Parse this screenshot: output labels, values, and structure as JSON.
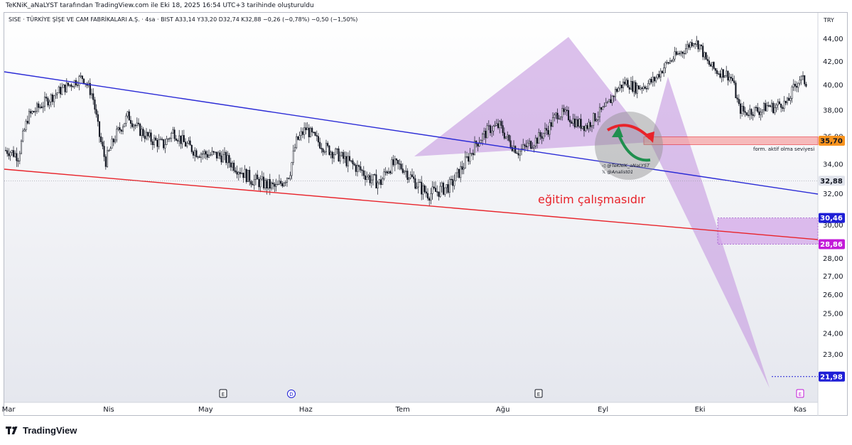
{
  "attribution": "TeKNiK_aNaLYST tarafından TradingView.com ile Eki 18, 2025 16:54 UTC+3 tarihinde oluşturuldu",
  "legend": {
    "symbol": "SISE · TÜRKİYE ŞİŞE VE CAM FABRİKALARI A.Ş. · 4sa · BIST",
    "open": "A33,14",
    "high": "Y33,20",
    "low": "D32,74",
    "close": "K32,88",
    "change": "−0,26 (−0,78%)",
    "change2": "−0,50 (−1,50%)"
  },
  "currency": "TRY",
  "brand": "TradingView",
  "colors": {
    "down_trend_line": "#2b2bd6",
    "lower_line": "#e8232a",
    "pattern_fill": "#c79be0",
    "zone_red": "#f6a5a5",
    "zone_purple": "#d1a3e8",
    "price_label_orange": "#f7931e",
    "price_label_blue": "#1f1fd6",
    "price_label_magenta": "#c21ad8",
    "price_label_grey": "#e0e3eb",
    "annotation_red": "#e8232a"
  },
  "chart_data": {
    "type": "candlestick",
    "y_scale": "log",
    "ylim": [
      21.5,
      45.5
    ],
    "y_ticks": [
      "44,00",
      "42,00",
      "40,00",
      "38,00",
      "36,00",
      "34,00",
      "32,00",
      "30,00",
      "28,00",
      "27,00",
      "26,00",
      "25,00",
      "24,00",
      "23,00",
      "22,00"
    ],
    "y_tick_values": [
      44,
      42,
      40,
      38,
      36,
      34,
      32,
      30,
      28,
      27,
      26,
      25,
      24,
      23,
      22
    ],
    "x_ticks": [
      "Mar",
      "Nis",
      "May",
      "Haz",
      "Tem",
      "Ağu",
      "Eyl",
      "Eki",
      "Kas"
    ],
    "x_tick_dates": [
      "2025-03-01",
      "2025-04-01",
      "2025-05-01",
      "2025-06-01",
      "2025-07-01",
      "2025-08-01",
      "2025-09-01",
      "2025-10-01",
      "2025-11-01"
    ],
    "x_range": [
      "2025-03-01",
      "2025-11-05"
    ],
    "price_path": [
      [
        "2025-03-01",
        35.0
      ],
      [
        "2025-03-04",
        34.6
      ],
      [
        "2025-03-07",
        37.5
      ],
      [
        "2025-03-12",
        38.6
      ],
      [
        "2025-03-17",
        39.6
      ],
      [
        "2025-03-22",
        40.4
      ],
      [
        "2025-03-24",
        40.7
      ],
      [
        "2025-03-27",
        39.2
      ],
      [
        "2025-03-29",
        36.2
      ],
      [
        "2025-03-31",
        34.2
      ],
      [
        "2025-04-03",
        36.0
      ],
      [
        "2025-04-07",
        37.6
      ],
      [
        "2025-04-10",
        36.6
      ],
      [
        "2025-04-14",
        35.8
      ],
      [
        "2025-04-18",
        35.4
      ],
      [
        "2025-04-21",
        36.4
      ],
      [
        "2025-04-24",
        35.6
      ],
      [
        "2025-04-28",
        34.9
      ],
      [
        "2025-05-02",
        34.7
      ],
      [
        "2025-05-06",
        34.6
      ],
      [
        "2025-05-10",
        33.9
      ],
      [
        "2025-05-15",
        33.0
      ],
      [
        "2025-05-20",
        32.6
      ],
      [
        "2025-05-23",
        32.4
      ],
      [
        "2025-05-27",
        33.4
      ],
      [
        "2025-05-29",
        35.6
      ],
      [
        "2025-06-01",
        36.6
      ],
      [
        "2025-06-04",
        35.8
      ],
      [
        "2025-06-07",
        35.2
      ],
      [
        "2025-06-10",
        34.8
      ],
      [
        "2025-06-14",
        34.2
      ],
      [
        "2025-06-18",
        33.6
      ],
      [
        "2025-06-21",
        33.0
      ],
      [
        "2025-06-24",
        32.7
      ],
      [
        "2025-06-26",
        33.6
      ],
      [
        "2025-06-28",
        34.0
      ],
      [
        "2025-07-01",
        33.8
      ],
      [
        "2025-07-04",
        33.0
      ],
      [
        "2025-07-07",
        32.3
      ],
      [
        "2025-07-09",
        32.0
      ],
      [
        "2025-07-12",
        32.2
      ],
      [
        "2025-07-16",
        32.6
      ],
      [
        "2025-07-20",
        34.0
      ],
      [
        "2025-07-24",
        35.6
      ],
      [
        "2025-07-28",
        36.6
      ],
      [
        "2025-07-31",
        36.8
      ],
      [
        "2025-08-03",
        35.6
      ],
      [
        "2025-08-06",
        34.9
      ],
      [
        "2025-08-09",
        35.4
      ],
      [
        "2025-08-12",
        35.9
      ],
      [
        "2025-08-15",
        36.6
      ],
      [
        "2025-08-18",
        37.8
      ],
      [
        "2025-08-21",
        37.6
      ],
      [
        "2025-08-24",
        37.0
      ],
      [
        "2025-08-27",
        36.8
      ],
      [
        "2025-08-30",
        37.6
      ],
      [
        "2025-09-02",
        38.2
      ],
      [
        "2025-09-05",
        39.6
      ],
      [
        "2025-09-08",
        40.3
      ],
      [
        "2025-09-11",
        39.8
      ],
      [
        "2025-09-14",
        40.0
      ],
      [
        "2025-09-17",
        40.5
      ],
      [
        "2025-09-20",
        41.6
      ],
      [
        "2025-09-23",
        42.4
      ],
      [
        "2025-09-26",
        43.0
      ],
      [
        "2025-09-29",
        43.9
      ],
      [
        "2025-10-01",
        43.4
      ],
      [
        "2025-10-03",
        42.0
      ],
      [
        "2025-10-06",
        41.2
      ],
      [
        "2025-10-09",
        41.0
      ],
      [
        "2025-10-11",
        40.5
      ],
      [
        "2025-10-13",
        38.2
      ],
      [
        "2025-10-15",
        37.8
      ],
      [
        "2025-10-17",
        38.0
      ],
      [
        "2025-10-20",
        38.0
      ],
      [
        "2025-10-22",
        38.4
      ],
      [
        "2025-10-24",
        38.2
      ],
      [
        "2025-10-26",
        38.6
      ],
      [
        "2025-10-28",
        38.5
      ],
      [
        "2025-10-30",
        39.8
      ],
      [
        "2025-11-01",
        40.6
      ],
      [
        "2025-11-03",
        40.2
      ]
    ],
    "price_lines": [
      {
        "label": "35,70",
        "value": 35.7,
        "style": "orange"
      },
      {
        "label": "32,88",
        "value": 32.88,
        "style": "grey"
      },
      {
        "label": "30,46",
        "value": 30.46,
        "style": "blue"
      },
      {
        "label": "28,86",
        "value": 28.86,
        "style": "magenta"
      },
      {
        "label": "21,98",
        "value": 21.98,
        "style": "blue"
      }
    ],
    "annotations": {
      "main_text": "eğitim çalışmasıdır",
      "zone_text": "form. aktif olma seviyesi",
      "watermark_line1": "@TeKNiK_aNaLYST",
      "watermark_line2": "@Analist01"
    },
    "event_markers": [
      "E",
      "D",
      "E",
      "E"
    ]
  }
}
